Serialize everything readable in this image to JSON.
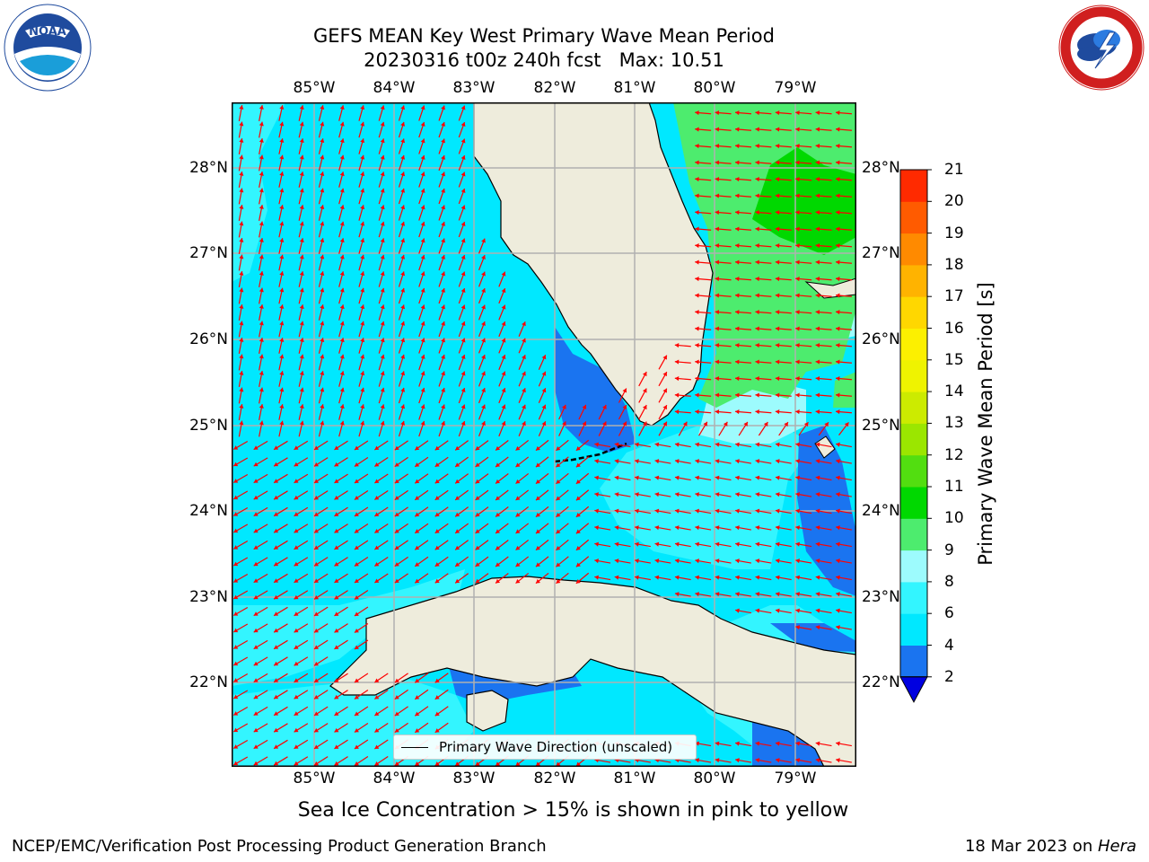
{
  "title": {
    "line1": "GEFS MEAN Key West Primary Wave Mean Period",
    "line2": "20230316 t00z 240h fcst   Max: 10.51"
  },
  "logos": {
    "left": "NOAA",
    "left_ring": "NATIONAL OCEANIC AND ATMOSPHERIC ADMINISTRATION · U.S. DEPARTMENT OF COMMERCE",
    "right_ring": "NATIONAL WEATHER SERVICE"
  },
  "lon_labels": [
    "85°W",
    "84°W",
    "83°W",
    "82°W",
    "81°W",
    "80°W",
    "79°W"
  ],
  "lat_labels": [
    "28°N",
    "27°N",
    "26°N",
    "25°N",
    "24°N",
    "23°N",
    "22°N"
  ],
  "colorbar": {
    "title": "Primary Wave Mean Period [s]",
    "levels": [
      "2",
      "4",
      "6",
      "8",
      "9",
      "10",
      "11",
      "12",
      "13",
      "14",
      "15",
      "16",
      "17",
      "18",
      "19",
      "20",
      "21"
    ],
    "colors": [
      "#1a74f0",
      "#00e8ff",
      "#33f5ff",
      "#9dfbfd",
      "#4dec6e",
      "#00d800",
      "#52de10",
      "#9be600",
      "#cceb00",
      "#eff300",
      "#fcf000",
      "#ffd700",
      "#ffb300",
      "#ff8a00",
      "#ff5b00",
      "#ff2a00"
    ],
    "extend_low_color": "#0000e0"
  },
  "legend": {
    "label": "Primary Wave Direction (unscaled)"
  },
  "subcaption": "Sea Ice Concentration > 15% is shown in pink to yellow",
  "footer": {
    "left": "NCEP/EMC/Verification Post Processing Product Generation Branch",
    "right_date": "18 Mar 2023 on ",
    "right_machine": "Hera"
  },
  "map_colors": {
    "ocean_main": "#00e8ff",
    "ocean_light": "#33f5ff",
    "ocean_pale": "#9dfbfd",
    "ocean_green": "#4dec6e",
    "ocean_bright_green": "#00d800",
    "ocean_blue": "#1a74f0",
    "ocean_deep": "#0000e0",
    "land": "#eeecdc",
    "arrow": "#ff0000",
    "grid": "#b0b0b0"
  }
}
